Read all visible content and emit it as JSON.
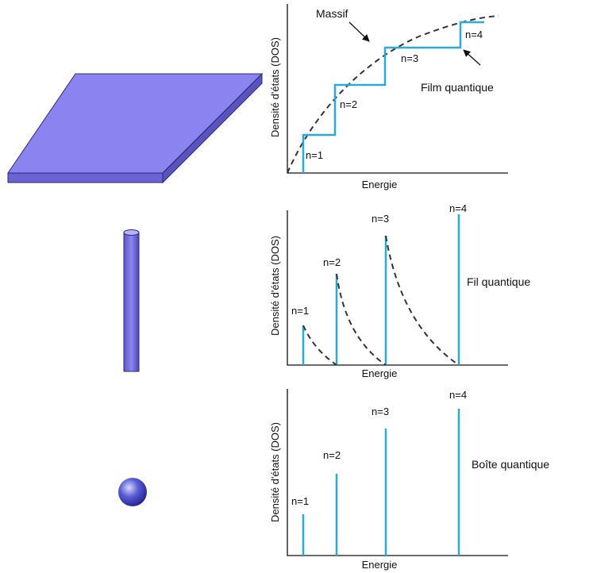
{
  "panels": [
    {
      "y_label": "Densité d'états (DOS)",
      "x_label": "Energie",
      "levels": [
        "n=1",
        "n=2",
        "n=3",
        "n=4"
      ],
      "caption": "Film quantique",
      "bulk_label": "Massif"
    },
    {
      "y_label": "Densité d'états (DOS)",
      "x_label": "Energie",
      "levels": [
        "n=1",
        "n=2",
        "n=3",
        "n=4"
      ],
      "caption": "Fil quantique"
    },
    {
      "y_label": "Densité d'états (DOS)",
      "x_label": "Energie",
      "levels": [
        "n=1",
        "n=2",
        "n=3",
        "n=4"
      ],
      "caption": "Boîte quantique"
    }
  ]
}
